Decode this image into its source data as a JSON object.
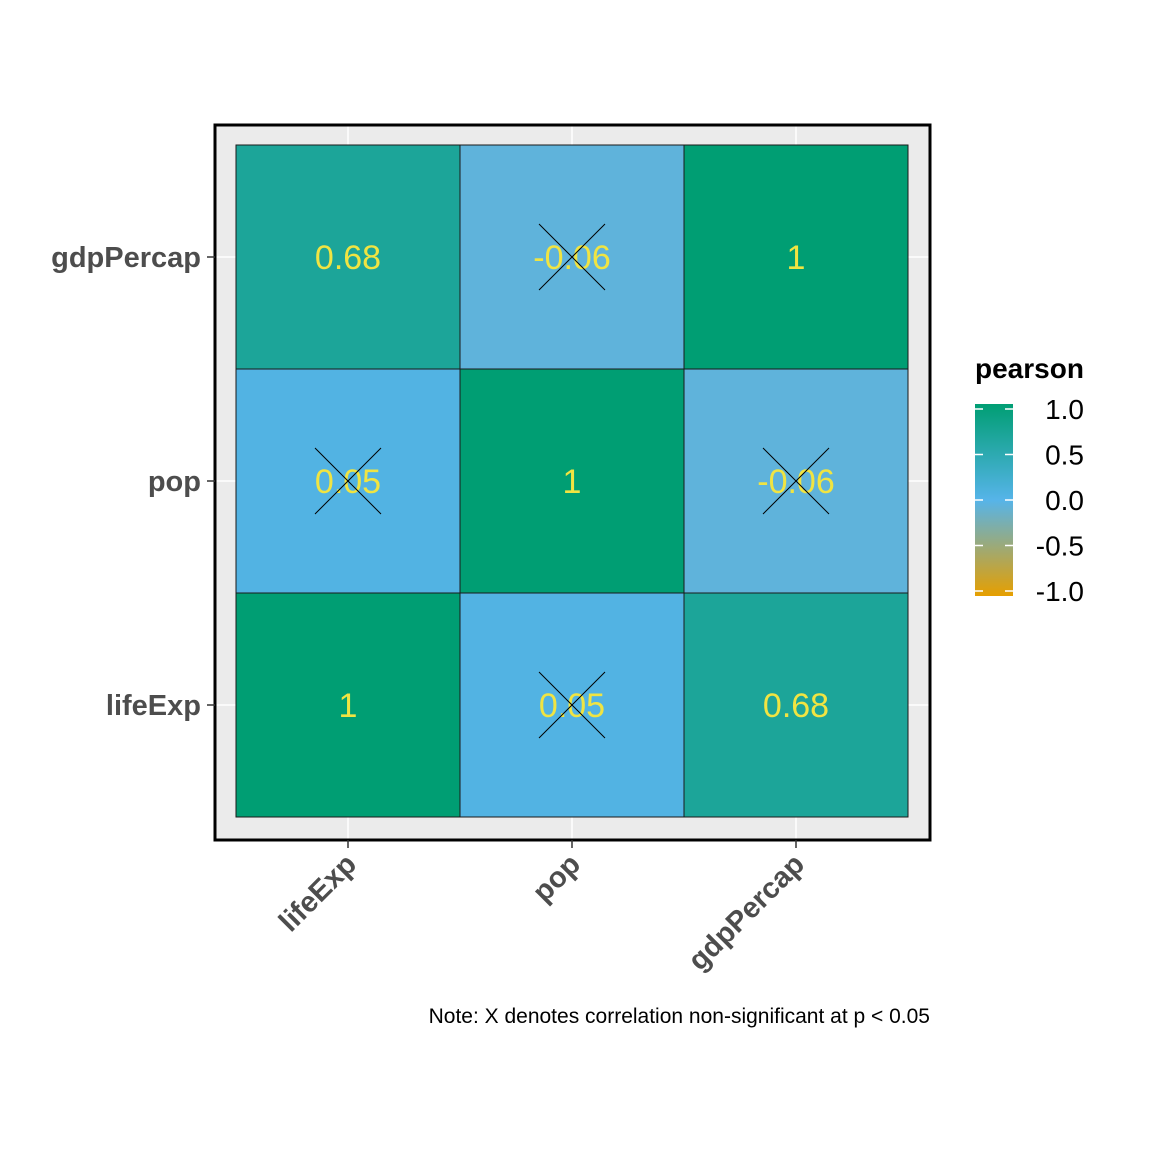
{
  "chart_data": {
    "type": "heatmap",
    "title": "",
    "xlabel": "",
    "ylabel": "",
    "x_categories": [
      "lifeExp",
      "pop",
      "gdpPercap"
    ],
    "y_categories": [
      "lifeExp",
      "pop",
      "gdpPercap"
    ],
    "cells": [
      {
        "x": "lifeExp",
        "y": "lifeExp",
        "value": 1,
        "label": "1",
        "significant": true
      },
      {
        "x": "pop",
        "y": "lifeExp",
        "value": 0.05,
        "label": "0.05",
        "significant": false
      },
      {
        "x": "gdpPercap",
        "y": "lifeExp",
        "value": 0.68,
        "label": "0.68",
        "significant": true
      },
      {
        "x": "lifeExp",
        "y": "pop",
        "value": 0.05,
        "label": "0.05",
        "significant": false
      },
      {
        "x": "pop",
        "y": "pop",
        "value": 1,
        "label": "1",
        "significant": true
      },
      {
        "x": "gdpPercap",
        "y": "pop",
        "value": -0.06,
        "label": "-0.06",
        "significant": false
      },
      {
        "x": "lifeExp",
        "y": "gdpPercap",
        "value": 0.68,
        "label": "0.68",
        "significant": true
      },
      {
        "x": "pop",
        "y": "gdpPercap",
        "value": -0.06,
        "label": "-0.06",
        "significant": false
      },
      {
        "x": "gdpPercap",
        "y": "gdpPercap",
        "value": 1,
        "label": "1",
        "significant": true
      }
    ],
    "legend": {
      "title": "pearson",
      "placement": "right",
      "range": [
        -1,
        1
      ],
      "ticks": [
        1.0,
        0.5,
        0.0,
        -0.5,
        -1.0
      ],
      "tick_labels": [
        "1.0",
        "0.5",
        "0.0",
        "-0.5",
        "-1.0"
      ]
    },
    "colors": {
      "low": "#E69F00",
      "mid": "#56B4E9",
      "high": "#009E73",
      "label_text": "#F0E442",
      "panel_bg": "#EBEBEB"
    },
    "caption": "Note: X denotes correlation non-significant at p < 0.05"
  }
}
